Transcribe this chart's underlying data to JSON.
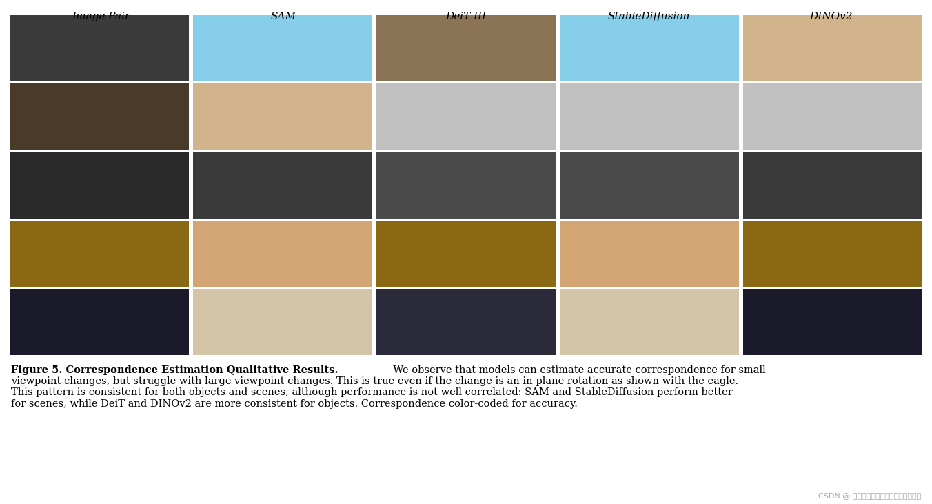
{
  "title_labels": [
    "Image Pair",
    "SAM",
    "DeiT III",
    "StableDiffusion",
    "DINOv2"
  ],
  "caption_bold": "Figure 5. Correspondence Estimation Qualitative Results.",
  "caption_normal": "  We observe that models can estimate accurate correspondence for small\nviewpoint changes, but struggle with large viewpoint changes. This is true even if the change is an in-plane rotation as shown with the eagle.\nThis pattern is consistent for both objects and scenes, although performance is not well correlated: SAM and StableDiffusion perform better\nfor scenes, while DeiT and DINOv2 are more consistent for objects. Correspondence color-coded for accuracy.",
  "watermark": "CSDN @ 人工智能大模型讲师培训咨询叶梓",
  "bg_color": "#ffffff",
  "header_color": "#000000",
  "caption_color": "#000000",
  "watermark_color": "#aaaaaa",
  "grid_rows": 5,
  "grid_cols": 5,
  "image_area_color": "#888888",
  "header_fontsize": 11,
  "caption_fontsize": 10.5,
  "watermark_fontsize": 8,
  "fig_width": 13.52,
  "fig_height": 7.31
}
